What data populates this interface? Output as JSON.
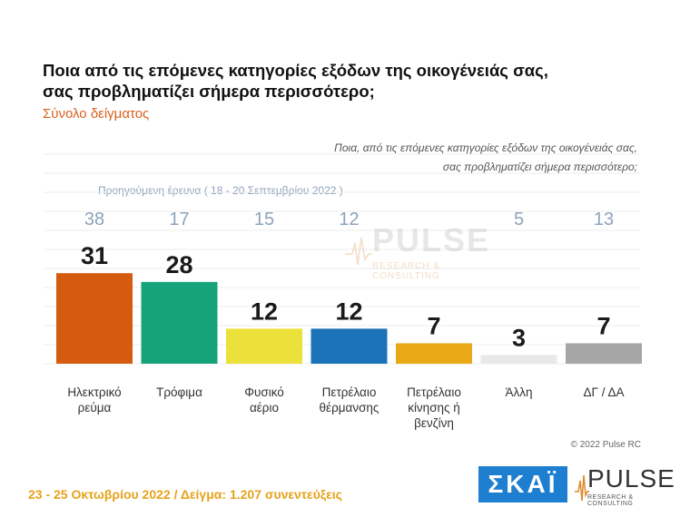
{
  "title_line1": "Ποια από τις επόμενες κατηγορίες εξόδων της οικογένειάς σας,",
  "title_line2": "σας προβληματίζει σήμερα περισσότερο;",
  "subtitle": "Σύνολο δείγματος",
  "question_line1": "Ποια, από τις επόμενες κατηγορίες εξόδων της οικογένειάς σας,",
  "question_line2": "σας προβληματίζει σήμερα περισσότερο;",
  "prev_survey_label": "Προηγούμενη έρευνα  ( 18 - 20 Σεπτεμβρίου  2022 )",
  "watermark": {
    "name": "PULSE",
    "sub": "RESEARCH & CONSULTING"
  },
  "credit": "© 2022 Pulse RC",
  "footer": "23 - 25  Οκτωβρίου  2022  /  Δείγμα:  1.207 συνεντεύξεις",
  "logos": {
    "channel": "ΣΚΑΪ",
    "pulse_name": "PULSE",
    "pulse_sub": "RESEARCH & CONSULTING"
  },
  "colors": {
    "accent_orange": "#d9601a",
    "footer_yellow": "#e6a21a",
    "prev_values": "#8da3bd",
    "channel_blue": "#1e7fd1"
  },
  "chart_data": {
    "type": "bar",
    "categories": [
      [
        "Ηλεκτρικό",
        "ρεύμα"
      ],
      [
        "Τρόφιμα"
      ],
      [
        "Φυσικό",
        "αέριο"
      ],
      [
        "Πετρέλαιο",
        "θέρμανσης"
      ],
      [
        "Πετρέλαιο",
        "κίνησης ή",
        "βενζίνη"
      ],
      [
        "Άλλη"
      ],
      [
        "ΔΓ / ΔΑ"
      ]
    ],
    "values": [
      31,
      28,
      12,
      12,
      7,
      3,
      7
    ],
    "previous_values": [
      38,
      17,
      15,
      12,
      5,
      13
    ],
    "previous_value_columns": [
      0,
      1,
      2,
      3,
      5,
      6
    ],
    "colors": [
      "#d45b10",
      "#16a37a",
      "#ece13a",
      "#1a73b8",
      "#e8a917",
      "#e9e9e9",
      "#a6a6a6"
    ],
    "grid": true,
    "legend": "none"
  }
}
